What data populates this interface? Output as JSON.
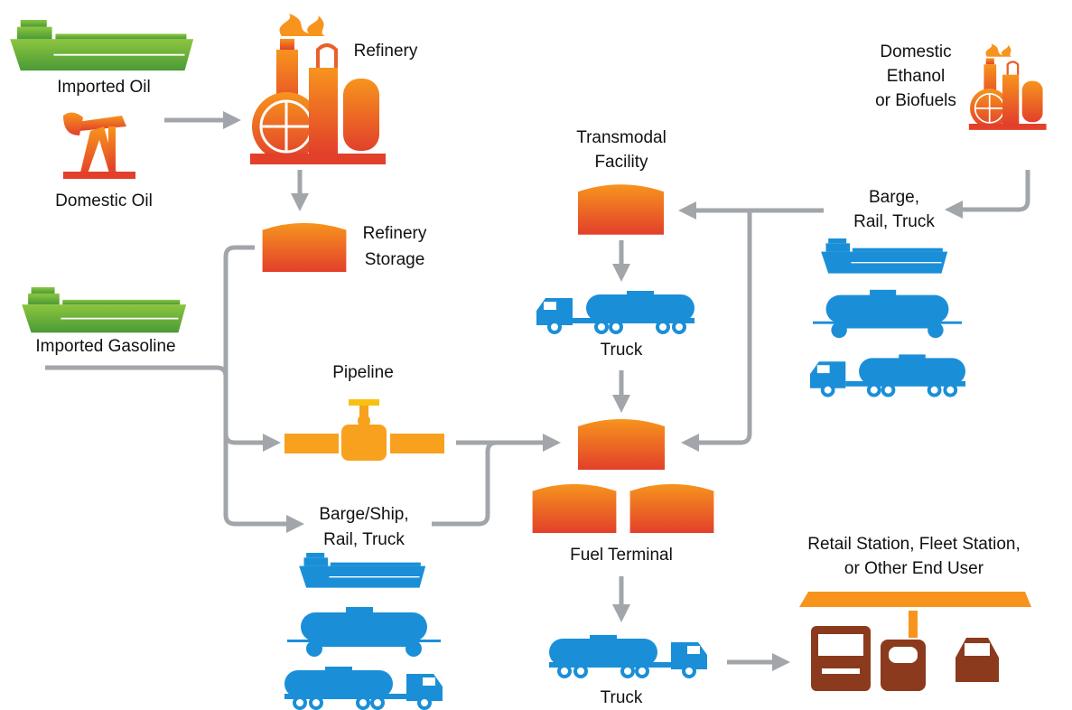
{
  "nodes": [
    {
      "lines": [
        "Imported Oil"
      ]
    },
    {
      "lines": [
        "Domestic Oil"
      ]
    },
    {
      "lines": [
        "Refinery"
      ]
    },
    {
      "lines": [
        "Refinery",
        "Storage"
      ]
    },
    {
      "lines": [
        "Imported Gasoline"
      ]
    },
    {
      "lines": [
        "Pipeline"
      ]
    },
    {
      "lines": [
        "Barge/Ship,",
        "Rail, Truck"
      ]
    },
    {
      "lines": [
        "Transmodal",
        "Facility"
      ]
    },
    {
      "lines": [
        "Truck"
      ]
    },
    {
      "lines": [
        "Domestic",
        "Ethanol",
        "or Biofuels"
      ]
    },
    {
      "lines": [
        "Barge,",
        "Rail, Truck"
      ]
    },
    {
      "lines": [
        "Fuel Terminal"
      ]
    },
    {
      "lines": [
        "Truck"
      ]
    },
    {
      "lines": [
        "Retail Station, Fleet Station,",
        "or Other End User"
      ]
    }
  ]
}
